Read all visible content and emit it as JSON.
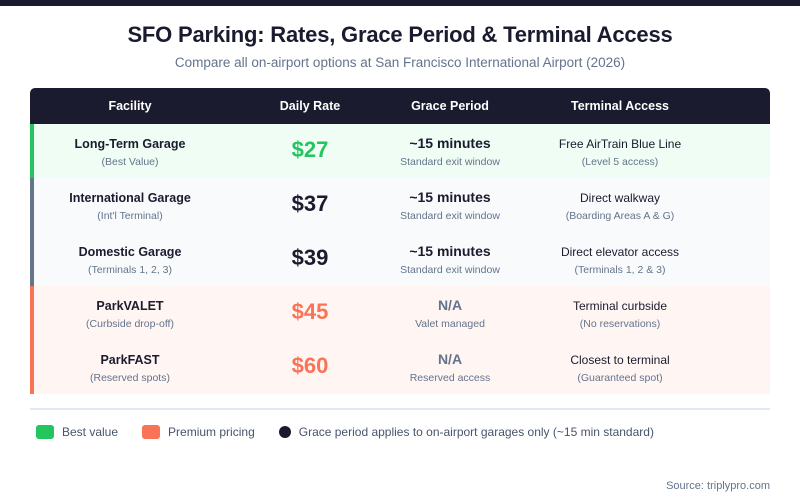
{
  "header": {
    "title": "SFO Parking: Rates, Grace Period & Terminal Access",
    "subtitle": "Compare all on-airport options at San Francisco International Airport (2026)"
  },
  "colors": {
    "dark": "#1a1b2e",
    "best_value": "#22c55e",
    "premium": "#f97356",
    "standard_accent": "#64748b",
    "best_row_bg": "#effdf4",
    "standard_row_bg": "#f8fafc",
    "premium_row_bg": "#fff5f3"
  },
  "table": {
    "columns": [
      "Facility",
      "Daily Rate",
      "Grace Period",
      "Terminal Access"
    ],
    "rows": [
      {
        "facility": "Long-Term Garage",
        "note": "(Best Value)",
        "rate": "$27",
        "grace": "~15 minutes",
        "grace_note": "Standard exit window",
        "access": "Free AirTrain Blue Line",
        "access_note": "(Level 5 access)",
        "category": "best"
      },
      {
        "facility": "International Garage",
        "note": "(Int'l Terminal)",
        "rate": "$37",
        "grace": "~15 minutes",
        "grace_note": "Standard exit window",
        "access": "Direct walkway",
        "access_note": "(Boarding Areas A & G)",
        "category": "standard"
      },
      {
        "facility": "Domestic Garage",
        "note": "(Terminals 1, 2, 3)",
        "rate": "$39",
        "grace": "~15 minutes",
        "grace_note": "Standard exit window",
        "access": "Direct elevator access",
        "access_note": "(Terminals 1, 2 & 3)",
        "category": "standard"
      },
      {
        "facility": "ParkVALET",
        "note": "(Curbside drop-off)",
        "rate": "$45",
        "grace": "N/A",
        "grace_note": "Valet managed",
        "access": "Terminal curbside",
        "access_note": "(No reservations)",
        "category": "premium"
      },
      {
        "facility": "ParkFAST",
        "note": "(Reserved spots)",
        "rate": "$60",
        "grace": "N/A",
        "grace_note": "Reserved access",
        "access": "Closest to terminal",
        "access_note": "(Guaranteed spot)",
        "category": "premium"
      }
    ]
  },
  "legend": [
    {
      "label": "Best value",
      "shape": "square",
      "color": "#22c55e"
    },
    {
      "label": "Premium pricing",
      "shape": "square",
      "color": "#f97356"
    },
    {
      "label": "Grace period applies to on-airport garages only (~15 min standard)",
      "shape": "circle",
      "color": "#1a1b2e"
    }
  ],
  "footer": {
    "source": "Source: triplypro.com"
  },
  "chart_data": {
    "type": "table",
    "title": "SFO Parking: Rates, Grace Period & Terminal Access",
    "subtitle": "Compare all on-airport options at San Francisco International Airport (2026)",
    "columns": [
      "Facility",
      "Daily Rate",
      "Grace Period",
      "Terminal Access"
    ],
    "categories": [
      "Long-Term Garage",
      "International Garage",
      "Domestic Garage",
      "ParkVALET",
      "ParkFAST"
    ],
    "values": [
      27,
      37,
      39,
      45,
      60
    ],
    "unit": "USD per day",
    "grace_period": [
      "~15 minutes",
      "~15 minutes",
      "~15 minutes",
      "N/A",
      "N/A"
    ],
    "terminal_access": [
      "Free AirTrain Blue Line (Level 5 access)",
      "Direct walkway (Boarding Areas A & G)",
      "Direct elevator access (Terminals 1, 2 & 3)",
      "Terminal curbside (No reservations)",
      "Closest to terminal (Guaranteed spot)"
    ],
    "legend": [
      "Best value",
      "Premium pricing",
      "Grace period applies to on-airport garages only (~15 min standard)"
    ],
    "source": "Source: triplypro.com"
  }
}
